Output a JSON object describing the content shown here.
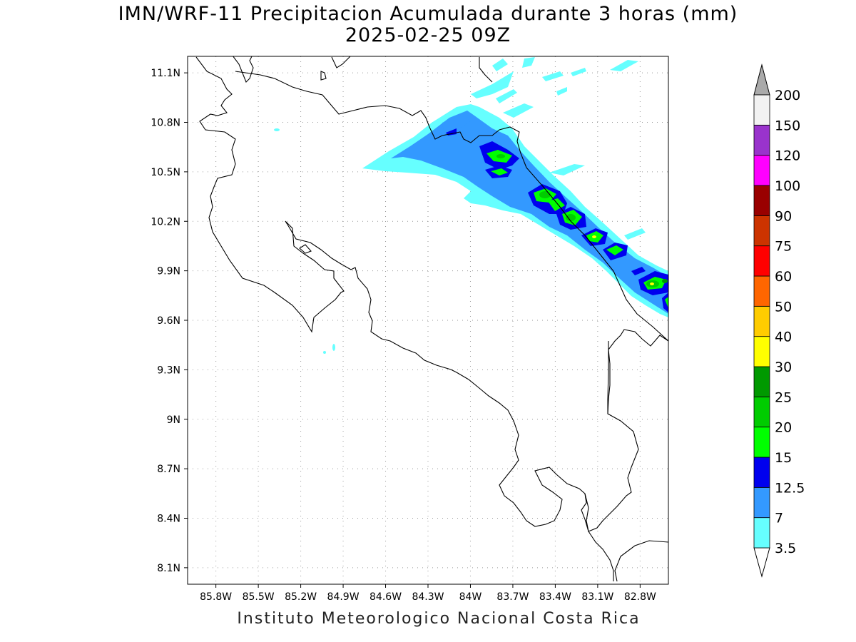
{
  "title": {
    "line1": "IMN/WRF-11 Precipitacion Acumulada durante 3 horas (mm)",
    "line2": "2025-02-25 09Z"
  },
  "footer": "Instituto Meteorologico Nacional Costa Rica",
  "map": {
    "lon_range": [
      -86.0,
      -82.6
    ],
    "lat_range": [
      8.0,
      11.2
    ],
    "grid": "dotted",
    "lat_labels": [
      "11.1N",
      "10.8N",
      "10.5N",
      "10.2N",
      "9.9N",
      "9.6N",
      "9.3N",
      "9N",
      "8.7N",
      "8.4N",
      "8.1N"
    ],
    "lon_labels": [
      "85.8W",
      "85.5W",
      "85.2W",
      "84.9W",
      "84.6W",
      "84.3W",
      "84W",
      "83.7W",
      "83.4W",
      "83.1W",
      "82.8W"
    ]
  },
  "colorbar": {
    "levels": [
      "3.5",
      "7",
      "12.5",
      "15",
      "20",
      "25",
      "30",
      "40",
      "50",
      "60",
      "75",
      "90",
      "100",
      "120",
      "150",
      "200"
    ],
    "colors": [
      "#66ffff",
      "#3399ff",
      "#0000ee",
      "#00ff00",
      "#00cc00",
      "#009900",
      "#ffff00",
      "#ffcc00",
      "#ff6600",
      "#ff0000",
      "#cc3300",
      "#990000",
      "#ff00ff",
      "#9933cc",
      "#f2f2f2"
    ],
    "over_color": "#aaaaaa",
    "under_color": "#ffffff"
  }
}
